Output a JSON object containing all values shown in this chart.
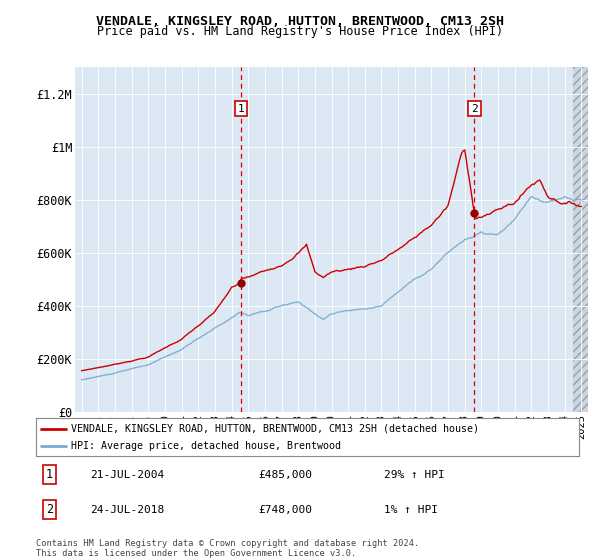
{
  "title": "VENDALE, KINGSLEY ROAD, HUTTON, BRENTWOOD, CM13 2SH",
  "subtitle": "Price paid vs. HM Land Registry's House Price Index (HPI)",
  "ylim": [
    0,
    1300000
  ],
  "yticks": [
    0,
    200000,
    400000,
    600000,
    800000,
    1000000,
    1200000
  ],
  "ytick_labels": [
    "£0",
    "£200K",
    "£400K",
    "£600K",
    "£800K",
    "£1M",
    "£1.2M"
  ],
  "background_color": "#dce9f5",
  "grid_color": "#ffffff",
  "red_line_color": "#cc0000",
  "blue_line_color": "#7aaacc",
  "marker1_year": 2004.58,
  "marker1_value": 485000,
  "marker2_year": 2018.58,
  "marker2_value": 748000,
  "legend_red_label": "VENDALE, KINGSLEY ROAD, HUTTON, BRENTWOOD, CM13 2SH (detached house)",
  "legend_blue_label": "HPI: Average price, detached house, Brentwood",
  "annotation1_date": "21-JUL-2004",
  "annotation1_price": "£485,000",
  "annotation1_hpi": "29% ↑ HPI",
  "annotation2_date": "24-JUL-2018",
  "annotation2_price": "£748,000",
  "annotation2_hpi": "1% ↑ HPI",
  "copyright_text": "Contains HM Land Registry data © Crown copyright and database right 2024.\nThis data is licensed under the Open Government Licence v3.0."
}
